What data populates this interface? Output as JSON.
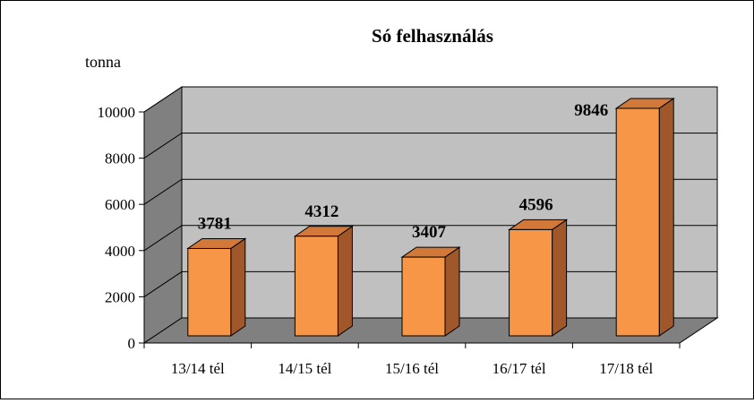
{
  "chart_data": {
    "type": "bar",
    "title": "Só felhasználás",
    "ylabel": "tonna",
    "xlabel": "",
    "categories": [
      "13/14 tél",
      "14/15 tél",
      "15/16 tél",
      "16/17 tél",
      "17/18 tél"
    ],
    "values": [
      3781,
      4312,
      3407,
      4596,
      9846
    ],
    "data_labels": [
      "3781",
      "4312",
      "3407",
      "4596",
      "9846"
    ],
    "ylim": [
      0,
      10000
    ],
    "yticks": [
      0,
      2000,
      4000,
      6000,
      8000,
      10000
    ],
    "ytick_labels": [
      "0",
      "2000",
      "4000",
      "6000",
      "8000",
      "10000"
    ],
    "grid": true,
    "legend": "none",
    "colors": {
      "bar_front": "#f79646",
      "bar_side": "#a0582a",
      "bar_top": "#d2793a",
      "back_wall": "#c0c0c0",
      "side_wall": "#808080",
      "floor": "#808080"
    }
  }
}
